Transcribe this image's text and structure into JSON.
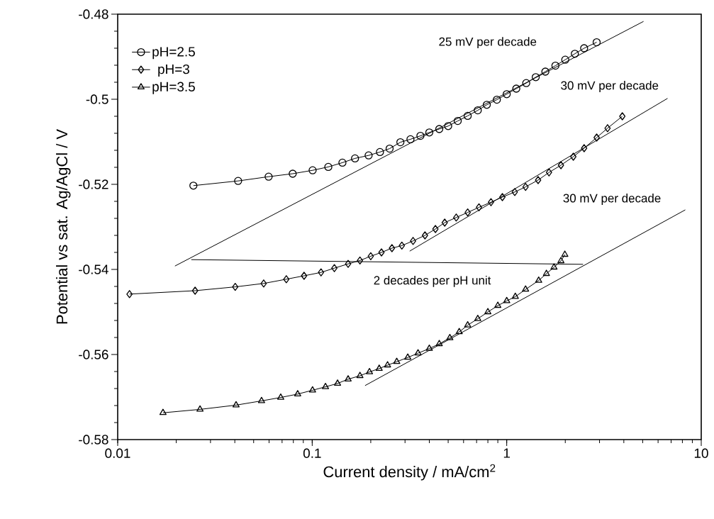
{
  "chart_data": {
    "type": "line",
    "xlabel": "Current density / mA/cm$^{2}$",
    "ylabel": "Potential vs sat. Ag/AgCl / V",
    "log": "x",
    "xlim": [
      0.01,
      10
    ],
    "xticks": [
      0.01,
      0.1,
      1,
      10
    ],
    "ylim": [
      -0.58,
      -0.48
    ],
    "yticks": [
      -0.58,
      -0.56,
      -0.54,
      -0.52,
      -0.5,
      -0.48
    ],
    "legend": "top left",
    "series": [
      {
        "name": "pH=2.5",
        "color": "#000000",
        "marker": "circle",
        "x": [
          0.0245,
          0.0416,
          0.0597,
          0.0794,
          0.1005,
          0.121,
          0.143,
          0.166,
          0.195,
          0.223,
          0.25,
          0.284,
          0.32,
          0.36,
          0.4,
          0.45,
          0.5,
          0.56,
          0.63,
          0.71,
          0.79,
          0.89,
          1.0,
          1.12,
          1.26,
          1.41,
          1.58,
          1.78,
          2.0,
          2.24,
          2.5,
          2.9
        ],
        "values": [
          -0.5203,
          -0.5192,
          -0.5182,
          -0.5175,
          -0.5167,
          -0.5159,
          -0.5149,
          -0.5139,
          -0.5132,
          -0.5124,
          -0.5116,
          -0.5101,
          -0.5094,
          -0.5086,
          -0.5078,
          -0.507,
          -0.5063,
          -0.5051,
          -0.5039,
          -0.5026,
          -0.5013,
          -0.5001,
          -0.4988,
          -0.4975,
          -0.4962,
          -0.4948,
          -0.4935,
          -0.4921,
          -0.4907,
          -0.4893,
          -0.488,
          -0.4866
        ]
      },
      {
        "name": "pH=3",
        "color": "#000000",
        "marker": "diamond",
        "x": [
          0.0115,
          0.025,
          0.0402,
          0.0563,
          0.0736,
          0.0908,
          0.111,
          0.13,
          0.153,
          0.176,
          0.2,
          0.227,
          0.257,
          0.289,
          0.33,
          0.38,
          0.43,
          0.48,
          0.55,
          0.63,
          0.72,
          0.83,
          0.95,
          1.1,
          1.25,
          1.45,
          1.65,
          1.9,
          2.2,
          2.5,
          2.9,
          3.3,
          3.93
        ],
        "values": [
          -0.5458,
          -0.545,
          -0.5441,
          -0.5433,
          -0.5423,
          -0.5415,
          -0.5407,
          -0.5397,
          -0.5387,
          -0.5379,
          -0.5369,
          -0.536,
          -0.535,
          -0.5344,
          -0.5333,
          -0.532,
          -0.5305,
          -0.529,
          -0.5278,
          -0.5266,
          -0.5254,
          -0.5242,
          -0.523,
          -0.5218,
          -0.5206,
          -0.519,
          -0.5172,
          -0.5155,
          -0.5135,
          -0.5115,
          -0.509,
          -0.5068,
          -0.504
        ]
      },
      {
        "name": "pH=3.5",
        "color": "#000000",
        "marker": "triangle",
        "x": [
          0.0171,
          0.0265,
          0.0406,
          0.0549,
          0.0689,
          0.0842,
          0.1004,
          0.117,
          0.135,
          0.153,
          0.176,
          0.197,
          0.221,
          0.244,
          0.272,
          0.31,
          0.35,
          0.4,
          0.45,
          0.51,
          0.57,
          0.63,
          0.71,
          0.8,
          0.9,
          1.0,
          1.107,
          1.25,
          1.46,
          1.6,
          1.75,
          1.9,
          1.99
        ],
        "values": [
          -0.5737,
          -0.5729,
          -0.5719,
          -0.5709,
          -0.5701,
          -0.5693,
          -0.5684,
          -0.5676,
          -0.5668,
          -0.5658,
          -0.565,
          -0.5641,
          -0.5633,
          -0.5625,
          -0.5617,
          -0.5607,
          -0.5597,
          -0.5586,
          -0.5575,
          -0.5561,
          -0.5547,
          -0.5531,
          -0.5516,
          -0.55,
          -0.5485,
          -0.5474,
          -0.5464,
          -0.5447,
          -0.5426,
          -0.541,
          -0.5395,
          -0.538,
          -0.5365
        ]
      },
      {
        "color": "#000000",
        "marker": "none",
        "x": [
          0.0197,
          5.05
        ],
        "values": [
          -0.5392,
          -0.4817
        ]
      },
      {
        "color": "#000000",
        "marker": "none",
        "x": [
          0.317,
          6.71
        ],
        "values": [
          -0.5357,
          -0.4998
        ]
      },
      {
        "color": "#000000",
        "marker": "none",
        "x": [
          0.187,
          8.28
        ],
        "values": [
          -0.5673,
          -0.526
        ]
      },
      {
        "color": "#000000",
        "marker": "none",
        "x": [
          0.0239,
          2.47
        ],
        "values": [
          -0.5377,
          -0.5388
        ]
      }
    ],
    "annotations": [
      "25 mV per decade",
      "30 mV per decade",
      "30 mV per decade",
      "2 decades per pH unit"
    ]
  }
}
